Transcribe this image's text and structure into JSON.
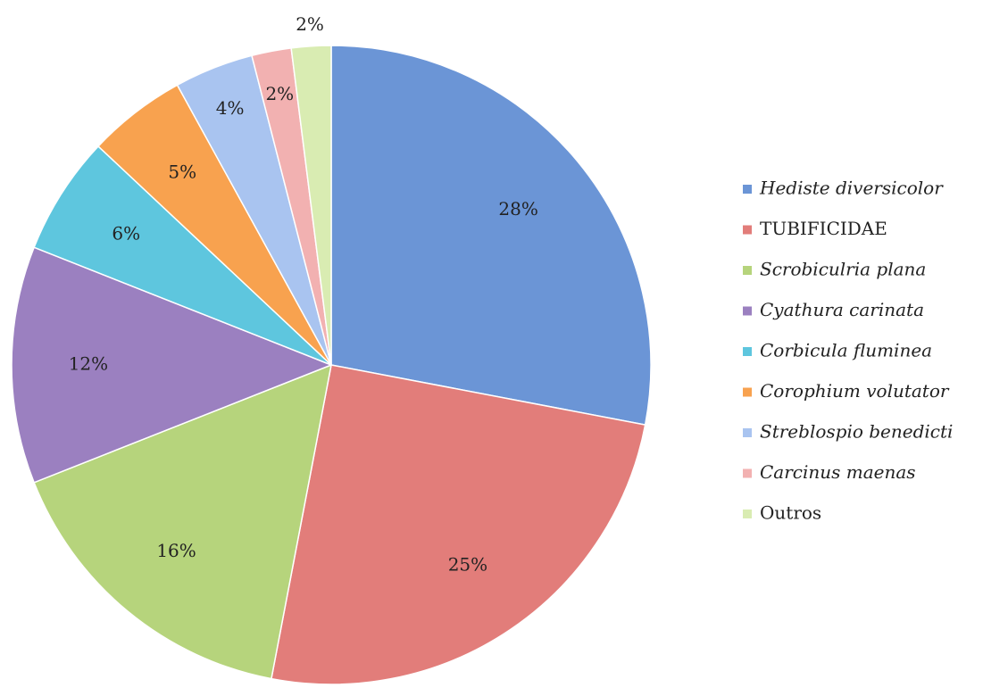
{
  "chart_data": {
    "type": "pie",
    "categories": [
      "Hediste diversicolor",
      "TUBIFICIDAE",
      "Scrobiculria plana",
      "Cyathura carinata",
      "Corbicula fluminea",
      "Corophium volutator",
      "Streblospio benedicti",
      "Carcinus maenas",
      "Outros"
    ],
    "values": [
      28,
      25,
      16,
      12,
      6,
      5,
      4,
      2,
      2
    ],
    "value_labels": [
      "28%",
      "25%",
      "16%",
      "12%",
      "6%",
      "5%",
      "4%",
      "2%",
      "2%"
    ],
    "colors": [
      "#6b95d6",
      "#e27d7a",
      "#b6d47c",
      "#9b80c0",
      "#5ec6de",
      "#f8a24f",
      "#a9c4f0",
      "#f2b1b1",
      "#d9ecb2"
    ],
    "italic": [
      true,
      false,
      true,
      true,
      true,
      true,
      true,
      true,
      false
    ],
    "legend": "right"
  }
}
